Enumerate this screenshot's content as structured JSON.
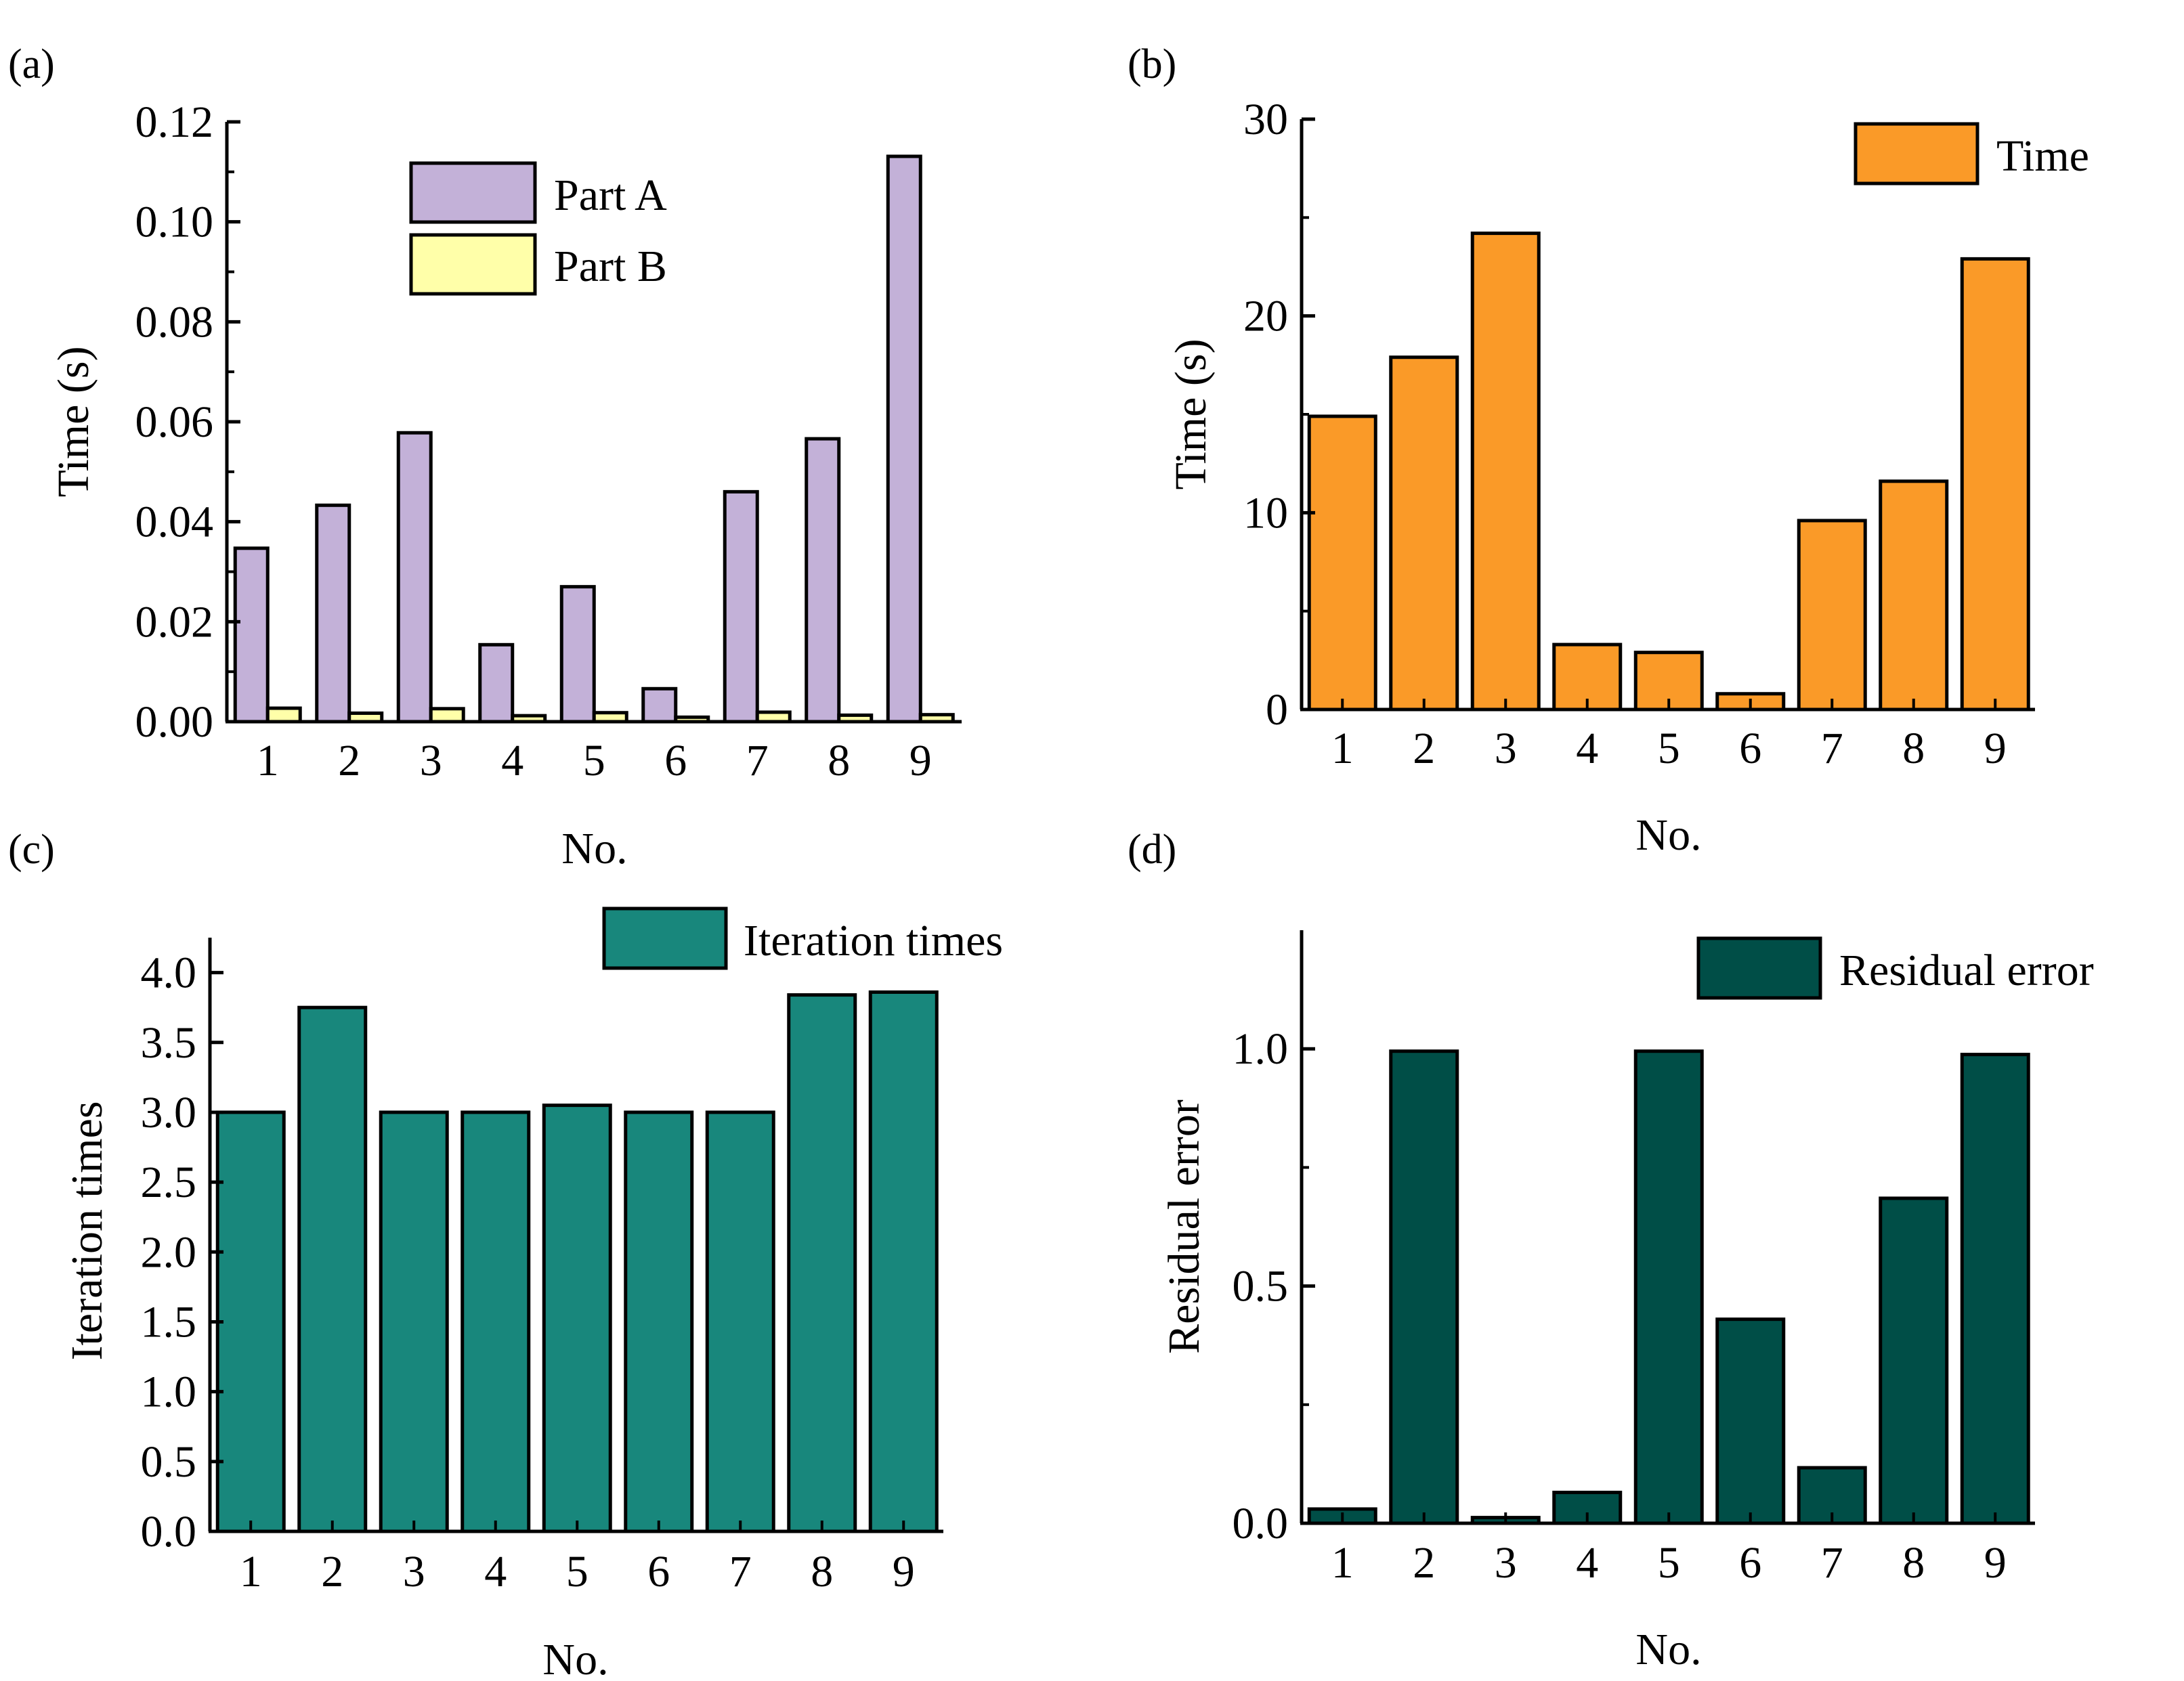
{
  "colors": {
    "part_a": "#c3b1d8",
    "part_b": "#ffffa9",
    "time": "#fa9a28",
    "iteration": "#18877c",
    "residual": "#004e47",
    "axis": "#000000"
  },
  "chart_data": [
    {
      "id": "a",
      "panel_label": "(a)",
      "type": "bar",
      "categories": [
        "1",
        "2",
        "3",
        "4",
        "5",
        "6",
        "7",
        "8",
        "9"
      ],
      "series": [
        {
          "name": "Part A",
          "color_key": "part_a",
          "values": [
            0.0347,
            0.0433,
            0.0578,
            0.0154,
            0.027,
            0.0066,
            0.046,
            0.0566,
            0.1131
          ]
        },
        {
          "name": "Part B",
          "color_key": "part_b",
          "values": [
            0.0027,
            0.0017,
            0.0026,
            0.0012,
            0.0018,
            0.0009,
            0.0019,
            0.0013,
            0.0014
          ]
        }
      ],
      "xlabel": "No.",
      "ylabel": "Time (s)",
      "ylim": [
        0,
        0.12
      ],
      "yticks": [
        0,
        0.02,
        0.04,
        0.06,
        0.08,
        0.1,
        0.12
      ],
      "ytick_labels": [
        "0.00",
        "0.02",
        "0.04",
        "0.06",
        "0.08",
        "0.10",
        "0.12"
      ],
      "legend_position": "top-center"
    },
    {
      "id": "b",
      "panel_label": "(b)",
      "type": "bar",
      "categories": [
        "1",
        "2",
        "3",
        "4",
        "5",
        "6",
        "7",
        "8",
        "9"
      ],
      "series": [
        {
          "name": "Time",
          "color_key": "time",
          "values": [
            14.9,
            17.9,
            24.2,
            3.3,
            2.9,
            0.8,
            9.6,
            11.6,
            22.9
          ]
        }
      ],
      "xlabel": "No.",
      "ylabel": "Time (s)",
      "ylim": [
        0,
        30
      ],
      "yticks": [
        0,
        10,
        20,
        30
      ],
      "ytick_labels": [
        "0",
        "10",
        "20",
        "30"
      ],
      "legend_position": "top-right"
    },
    {
      "id": "c",
      "panel_label": "(c)",
      "type": "bar",
      "categories": [
        "1",
        "2",
        "3",
        "4",
        "5",
        "6",
        "7",
        "8",
        "9"
      ],
      "series": [
        {
          "name": "Iteration times",
          "color_key": "iteration",
          "values": [
            3.0,
            3.75,
            3.0,
            3.0,
            3.05,
            3.0,
            3.0,
            3.84,
            3.86
          ]
        }
      ],
      "xlabel": "No.",
      "ylabel": "Iteration times",
      "ylim": [
        0,
        4.25
      ],
      "yticks": [
        0,
        0.5,
        1,
        1.5,
        2,
        2.5,
        3,
        3.5,
        4
      ],
      "ytick_labels": [
        "0.0",
        "0.5",
        "1.0",
        "1.5",
        "2.0",
        "2.5",
        "3.0",
        "3.5",
        "4.0"
      ],
      "legend_position": "top-right"
    },
    {
      "id": "d",
      "panel_label": "(d)",
      "type": "bar",
      "categories": [
        "1",
        "2",
        "3",
        "4",
        "5",
        "6",
        "7",
        "8",
        "9"
      ],
      "series": [
        {
          "name": "Residual error",
          "color_key": "residual",
          "values": [
            0.03,
            0.995,
            0.012,
            0.065,
            0.995,
            0.43,
            0.117,
            0.685,
            0.988
          ]
        }
      ],
      "xlabel": "No.",
      "ylabel": "Residual error",
      "ylim": [
        0,
        1.25
      ],
      "yticks": [
        0,
        0.5,
        1
      ],
      "ytick_labels": [
        "0.0",
        "0.5",
        "1.0"
      ],
      "legend_position": "top-right"
    }
  ]
}
